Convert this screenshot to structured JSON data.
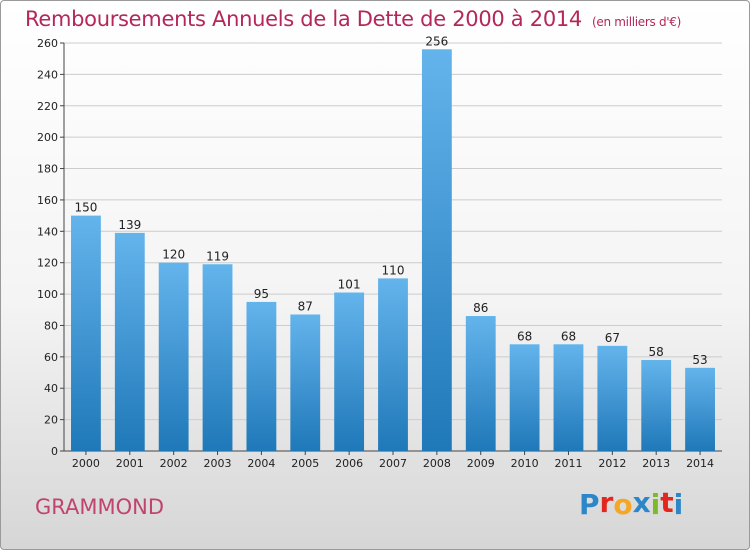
{
  "title": "Remboursements Annuels de la Dette de 2000 à 2014",
  "unit": "(en milliers d'€)",
  "commune": "GRAMMOND",
  "logo": {
    "letters": [
      "P",
      "r",
      "o",
      "x",
      "i",
      "t",
      "i"
    ],
    "colors": [
      "#2d86c7",
      "#e2271e",
      "#f5a623",
      "#2d86c7",
      "#7cba2b",
      "#e2271e",
      "#2d86c7"
    ]
  },
  "colors": {
    "title": "#b4275a",
    "bar_top": "#64b4ec",
    "bar_bottom": "#1f78b8",
    "grid": "#cccccc"
  },
  "chart_data": {
    "type": "bar",
    "categories": [
      "2000",
      "2001",
      "2002",
      "2003",
      "2004",
      "2005",
      "2006",
      "2007",
      "2008",
      "2009",
      "2010",
      "2011",
      "2012",
      "2013",
      "2014"
    ],
    "values": [
      150,
      139,
      120,
      119,
      95,
      87,
      101,
      110,
      256,
      86,
      68,
      68,
      67,
      58,
      53
    ],
    "ylim": [
      0,
      260
    ],
    "yticks": [
      0,
      20,
      40,
      60,
      80,
      100,
      120,
      140,
      160,
      180,
      200,
      220,
      240,
      260
    ],
    "grid": true,
    "data_labels": true
  }
}
